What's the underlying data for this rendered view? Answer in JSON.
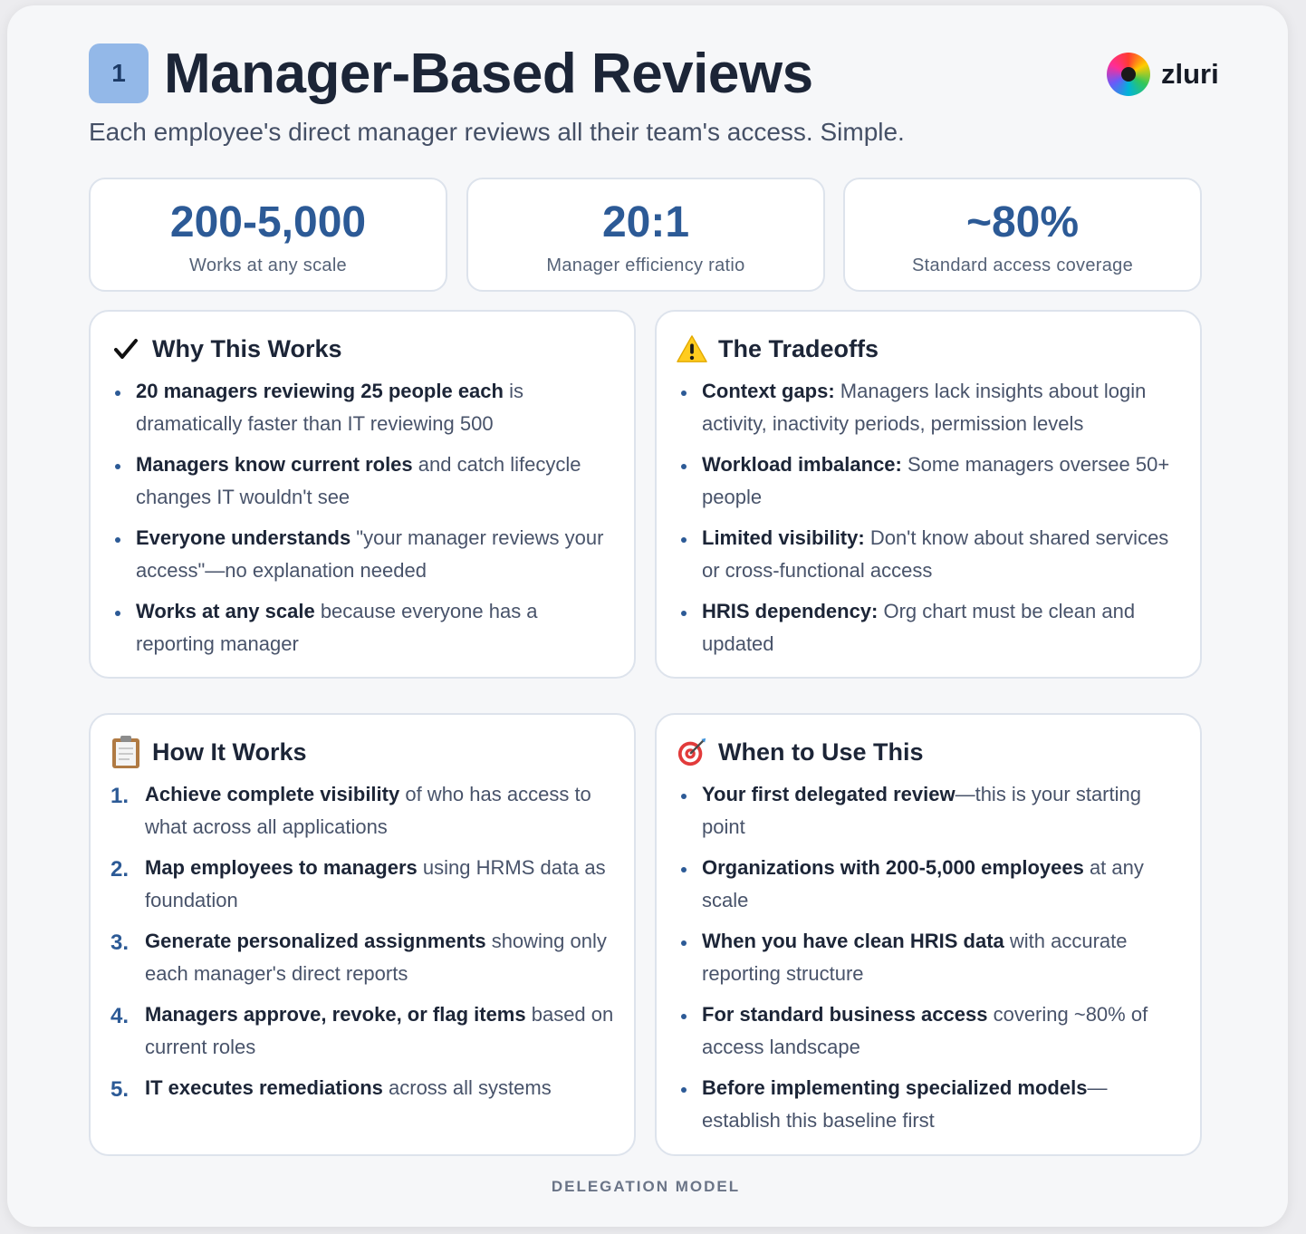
{
  "header": {
    "badge": "1",
    "title": "Manager-Based Reviews",
    "subtitle": "Each employee's direct manager reviews all their team's access. Simple.",
    "logo_text": "zluri"
  },
  "stats": [
    {
      "value": "200-5,000",
      "label": "Works at any scale"
    },
    {
      "value": "20:1",
      "label": "Manager efficiency ratio"
    },
    {
      "value": "~80%",
      "label": "Standard access coverage"
    }
  ],
  "why": {
    "icon": "✔",
    "title": "Why This Works",
    "items": [
      {
        "bold": "20 managers reviewing 25 people each",
        "rest": " is dramatically faster than IT reviewing 500"
      },
      {
        "bold": "Managers know current roles",
        "rest": " and catch lifecycle changes IT wouldn't see"
      },
      {
        "bold": "Everyone understands",
        "rest": " \"your manager reviews your access\"—no explanation needed"
      },
      {
        "bold": "Works at any scale",
        "rest": " because everyone has a reporting manager"
      }
    ]
  },
  "tradeoffs": {
    "title": "The Tradeoffs",
    "items": [
      {
        "bold": "Context gaps:",
        "rest": " Managers lack insights about login activity, inactivity periods, permission levels"
      },
      {
        "bold": "Workload imbalance:",
        "rest": " Some managers oversee 50+ people"
      },
      {
        "bold": "Limited visibility:",
        "rest": " Don't know about shared services or cross-functional access"
      },
      {
        "bold": "HRIS dependency:",
        "rest": " Org chart must be clean and updated"
      }
    ]
  },
  "how": {
    "title": "How It Works",
    "items": [
      {
        "num": "1.",
        "bold": "Achieve complete visibility",
        "rest": " of who has access to what across all applications"
      },
      {
        "num": "2.",
        "bold": "Map employees to managers",
        "rest": " using HRMS data as foundation"
      },
      {
        "num": "3.",
        "bold": "Generate personalized assignments",
        "rest": " showing only each manager's direct reports"
      },
      {
        "num": "4.",
        "bold": "Managers approve, revoke, or flag items",
        "rest": " based on current roles"
      },
      {
        "num": "5.",
        "bold": "IT executes remediations",
        "rest": " across all systems"
      }
    ]
  },
  "when": {
    "title": "When to Use This",
    "items": [
      {
        "bold": "Your first delegated review",
        "rest": "—this is your starting point"
      },
      {
        "bold": "Organizations with 200-5,000 employees",
        "rest": " at any scale"
      },
      {
        "bold": "When you have clean HRIS data",
        "rest": " with accurate reporting structure"
      },
      {
        "bold": "For standard business access",
        "rest": " covering ~80% of access landscape"
      },
      {
        "bold": "Before implementing specialized models",
        "rest": "—establish this baseline first"
      }
    ]
  },
  "footer": "DELEGATION MODEL",
  "colors": {
    "accent": "#2c5a96",
    "badge": "#93b8e8",
    "title": "#1c2537"
  },
  "icons": [
    "check-icon",
    "warning-icon",
    "clipboard-icon",
    "target-icon"
  ]
}
